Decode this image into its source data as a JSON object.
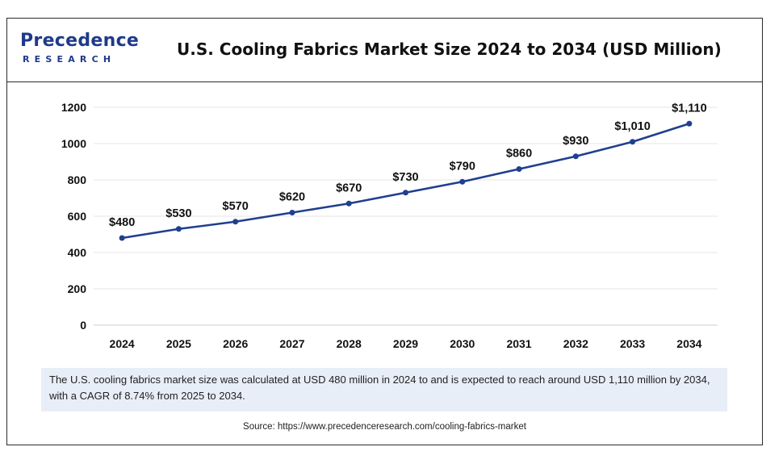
{
  "header": {
    "logo_top": "Precedence",
    "logo_bottom": "RESEARCH",
    "title": "U.S. Cooling Fabrics Market Size 2024 to 2034 (USD Million)"
  },
  "chart_data": {
    "type": "line",
    "title": "U.S. Cooling Fabrics Market Size 2024 to 2034 (USD Million)",
    "xlabel": "",
    "ylabel": "",
    "x": [
      "2024",
      "2025",
      "2026",
      "2027",
      "2028",
      "2029",
      "2030",
      "2031",
      "2032",
      "2033",
      "2034"
    ],
    "series": [
      {
        "values": [
          480,
          530,
          570,
          620,
          670,
          730,
          790,
          860,
          930,
          1010,
          1110
        ],
        "labels": [
          "$480",
          "$530",
          "$570",
          "$620",
          "$670",
          "$730",
          "$790",
          "$860",
          "$930",
          "$1,010",
          "$1,110"
        ],
        "color": "#1f3f8f"
      }
    ],
    "yticks": [
      0,
      200,
      400,
      600,
      800,
      1000,
      1200
    ],
    "ylim": [
      0,
      1200
    ],
    "grid": true,
    "legend": "none"
  },
  "caption": "The U.S. cooling fabrics market size was calculated at USD 480 million in 2024 to and is expected to reach around USD 1,110 million by 2034, with a CAGR of 8.74% from 2025 to 2034.",
  "source": "Source: https://www.precedenceresearch.com/cooling-fabrics-market"
}
